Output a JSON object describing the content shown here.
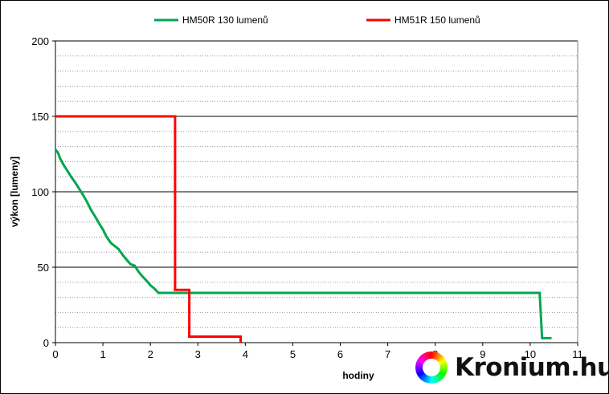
{
  "chart_data": {
    "type": "line",
    "title": "",
    "xlabel": "hodiny",
    "ylabel": "výkon [lumeny]",
    "xlim": [
      0,
      11
    ],
    "ylim": [
      0,
      200
    ],
    "x_ticks": [
      0,
      1,
      2,
      3,
      4,
      5,
      6,
      7,
      8,
      9,
      10,
      11
    ],
    "y_ticks": [
      0,
      50,
      100,
      150,
      200
    ],
    "grid": {
      "major_y_step": 50,
      "minor_y_step": 10,
      "major_style": "solid black",
      "minor_style": "dotted gray"
    },
    "legend_position": "top",
    "series": [
      {
        "name": "HM50R 130 lumenů",
        "color": "#00a651",
        "points": [
          [
            0,
            128
          ],
          [
            0.05,
            126
          ],
          [
            0.1,
            122
          ],
          [
            0.17,
            118
          ],
          [
            0.25,
            114
          ],
          [
            0.33,
            110
          ],
          [
            0.42,
            106
          ],
          [
            0.5,
            102
          ],
          [
            0.58,
            98
          ],
          [
            0.67,
            93
          ],
          [
            0.75,
            88
          ],
          [
            0.83,
            84
          ],
          [
            0.92,
            79
          ],
          [
            1.0,
            75
          ],
          [
            1.08,
            70
          ],
          [
            1.17,
            66
          ],
          [
            1.33,
            62
          ],
          [
            1.42,
            58
          ],
          [
            1.5,
            55
          ],
          [
            1.58,
            52
          ],
          [
            1.67,
            51
          ],
          [
            1.75,
            47
          ],
          [
            1.83,
            44
          ],
          [
            1.92,
            41
          ],
          [
            2.0,
            38
          ],
          [
            2.08,
            36
          ],
          [
            2.17,
            33
          ],
          [
            2.5,
            33
          ],
          [
            10.2,
            33
          ],
          [
            10.25,
            3
          ],
          [
            10.45,
            3
          ]
        ]
      },
      {
        "name": "HM51R 150 lumenů",
        "color": "#ff0000",
        "points": [
          [
            0,
            150
          ],
          [
            2.52,
            150
          ],
          [
            2.52,
            35
          ],
          [
            2.82,
            35
          ],
          [
            2.82,
            4
          ],
          [
            3.9,
            4
          ],
          [
            3.9,
            0
          ]
        ]
      }
    ]
  },
  "watermark": {
    "text": "Kronium.hu"
  }
}
